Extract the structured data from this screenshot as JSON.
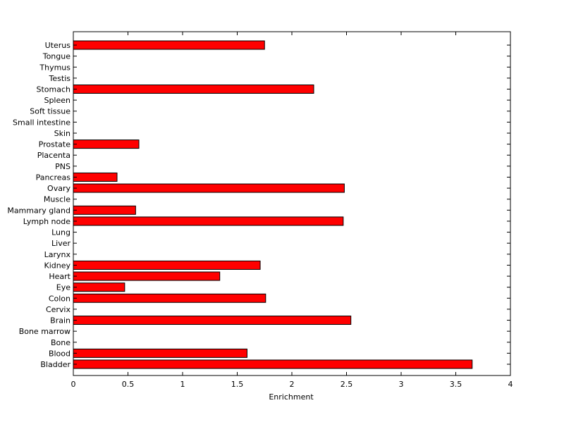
{
  "chart_data": {
    "type": "bar",
    "orientation": "horizontal",
    "title": "",
    "xlabel": "Enrichment",
    "ylabel": "",
    "xlim": [
      0,
      4
    ],
    "xticks": [
      "0",
      "0.5",
      "1",
      "1.5",
      "2",
      "2.5",
      "3",
      "3.5",
      "4"
    ],
    "grid": false,
    "bar_color": "#ff0000",
    "categories": [
      "Bladder",
      "Blood",
      "Bone",
      "Bone marrow",
      "Brain",
      "Cervix",
      "Colon",
      "Eye",
      "Heart",
      "Kidney",
      "Larynx",
      "Liver",
      "Lung",
      "Lymph node",
      "Mammary gland",
      "Muscle",
      "Ovary",
      "Pancreas",
      "PNS",
      "Placenta",
      "Prostate",
      "Skin",
      "Small intestine",
      "Soft tissue",
      "Spleen",
      "Stomach",
      "Testis",
      "Thymus",
      "Tongue",
      "Uterus"
    ],
    "values": [
      3.65,
      1.59,
      0,
      0,
      2.54,
      0,
      1.76,
      0.47,
      1.34,
      1.71,
      0,
      0,
      0,
      2.47,
      0.57,
      0,
      2.48,
      0.4,
      0,
      0,
      0.6,
      0,
      0,
      0,
      0,
      2.2,
      0,
      0,
      0,
      1.75
    ]
  }
}
